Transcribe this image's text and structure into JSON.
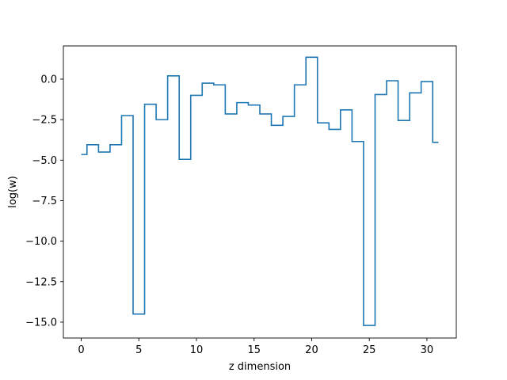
{
  "chart_data": {
    "type": "line",
    "drawstyle": "steps-mid",
    "xlabel": "z dimension",
    "ylabel": "log(w)",
    "xlim": [
      -1.55,
      32.55
    ],
    "ylim": [
      -15.98,
      2.05
    ],
    "x_ticks": [
      0,
      5,
      10,
      15,
      20,
      25,
      30
    ],
    "y_ticks": [
      0.0,
      -2.5,
      -5.0,
      -7.5,
      -10.0,
      -12.5,
      -15.0
    ],
    "x_tick_labels": [
      "0",
      "5",
      "10",
      "15",
      "20",
      "25",
      "30"
    ],
    "y_tick_labels": [
      "0.0",
      "−2.5",
      "−5.0",
      "−7.5",
      "−10.0",
      "−12.5",
      "−15.0"
    ],
    "grid": false,
    "series": [
      {
        "color": "#1f77b4",
        "x": [
          0,
          1,
          2,
          3,
          4,
          5,
          6,
          7,
          8,
          9,
          10,
          11,
          12,
          13,
          14,
          15,
          16,
          17,
          18,
          19,
          20,
          21,
          22,
          23,
          24,
          25,
          26,
          27,
          28,
          29,
          30,
          31
        ],
        "values": [
          -4.65,
          -4.05,
          -4.5,
          -4.05,
          -2.25,
          -14.5,
          -1.55,
          -2.5,
          0.2,
          -4.95,
          -1.0,
          -0.25,
          -0.35,
          -2.15,
          -1.45,
          -1.6,
          -2.15,
          -2.85,
          -2.3,
          -0.35,
          1.35,
          -2.7,
          -3.1,
          -1.9,
          -3.85,
          -15.2,
          -0.95,
          -0.1,
          -2.55,
          -0.85,
          -0.15,
          -3.9
        ]
      }
    ]
  }
}
